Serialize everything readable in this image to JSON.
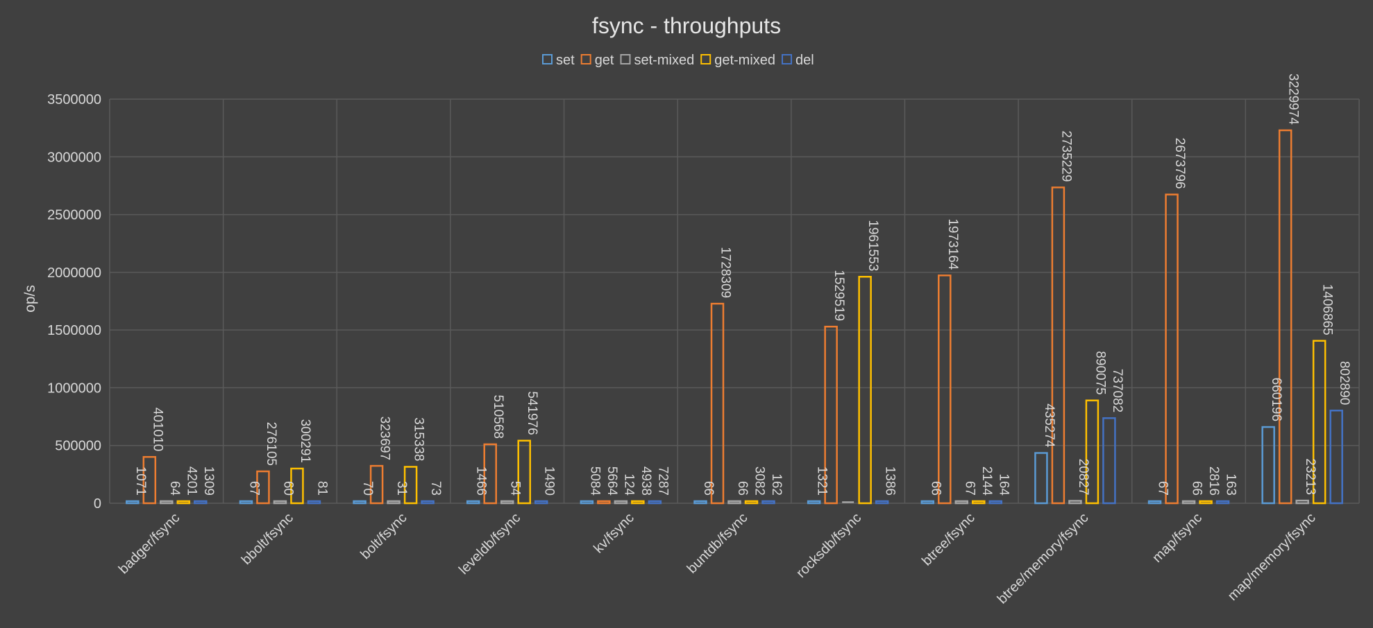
{
  "chart_data": {
    "type": "bar",
    "title": "fsync - throughputs",
    "ylabel": "op/s",
    "xlabel": "",
    "ylim": [
      0,
      3500000
    ],
    "yticks": [
      0,
      500000,
      1000000,
      1500000,
      2000000,
      2500000,
      3000000,
      3500000
    ],
    "yticks_text": [
      "0",
      "500000",
      "1000000",
      "1500000",
      "2000000",
      "2500000",
      "3000000",
      "3500000"
    ],
    "grid": true,
    "legend_position": "top",
    "categories": [
      "badger/fsync",
      "bbolt/fsync",
      "bolt/fsync",
      "leveldb/fsync",
      "kv/fsync",
      "buntdb/fsync",
      "rocksdb/fsync",
      "btree/fsync",
      "btree/memory/fsync",
      "map/fsync",
      "map/memory/fsync"
    ],
    "series": [
      {
        "name": "set",
        "color": "#5b9bd5",
        "values": [
          1071,
          67,
          70,
          1466,
          5084,
          66,
          1321,
          66,
          435274,
          67,
          660196
        ]
      },
      {
        "name": "get",
        "color": "#ed7d31",
        "values": [
          401010,
          276105,
          323697,
          510568,
          5664,
          1728309,
          1529519,
          1973164,
          2735229,
          2673796,
          3229974
        ]
      },
      {
        "name": "set-mixed",
        "color": "#a5a5a5",
        "values": [
          64,
          60,
          31,
          54,
          124,
          66,
          null,
          67,
          20827,
          66,
          23213
        ]
      },
      {
        "name": "get-mixed",
        "color": "#ffc000",
        "values": [
          4201,
          300291,
          315338,
          541976,
          4938,
          3082,
          1961553,
          2144,
          890075,
          2816,
          1406865
        ]
      },
      {
        "name": "del",
        "color": "#4472c4",
        "values": [
          1309,
          81,
          73,
          1490,
          7287,
          162,
          1386,
          164,
          737082,
          163,
          802890
        ]
      }
    ]
  }
}
